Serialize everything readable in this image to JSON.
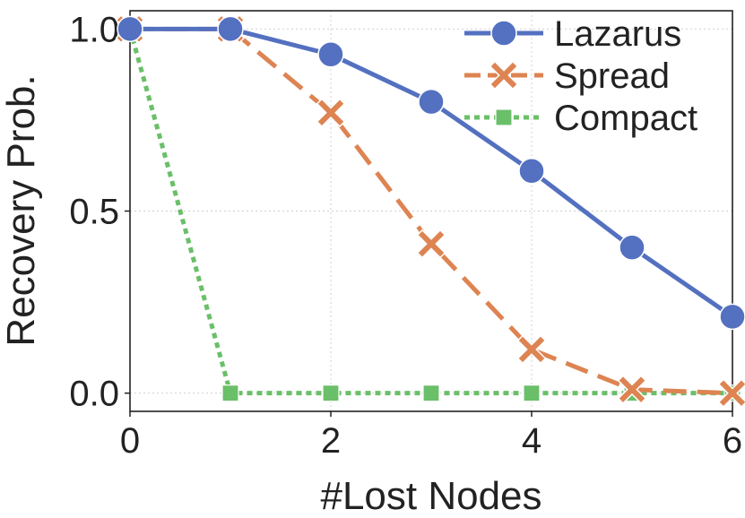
{
  "chart_data": {
    "type": "line",
    "title": "",
    "xlabel": "#Lost Nodes",
    "ylabel": "Recovery Prob.",
    "xlim": [
      0,
      6
    ],
    "ylim": [
      -0.05,
      1.05
    ],
    "x": [
      0,
      1,
      2,
      3,
      4,
      5,
      6
    ],
    "xticks": [
      0,
      2,
      4,
      6
    ],
    "xtick_labels": [
      "0",
      "2",
      "4",
      "6"
    ],
    "yticks": [
      0.0,
      0.5,
      1.0
    ],
    "ytick_labels": [
      "0.0",
      "0.5",
      "1.0"
    ],
    "grid": true,
    "legend_position": "top-right",
    "series": [
      {
        "name": "Lazarus",
        "values": [
          1.0,
          1.0,
          0.93,
          0.8,
          0.61,
          0.4,
          0.21
        ],
        "color": "#5470c0",
        "line_style": "solid",
        "marker": "circle"
      },
      {
        "name": "Spread",
        "values": [
          1.0,
          1.0,
          0.77,
          0.41,
          0.12,
          0.01,
          0.0
        ],
        "color": "#dd8452",
        "line_style": "dashed",
        "marker": "x"
      },
      {
        "name": "Compact",
        "values": [
          1.0,
          0.0,
          0.0,
          0.0,
          0.0,
          0.0,
          0.0
        ],
        "color": "#6abf69",
        "line_style": "dotted",
        "marker": "square"
      }
    ]
  }
}
